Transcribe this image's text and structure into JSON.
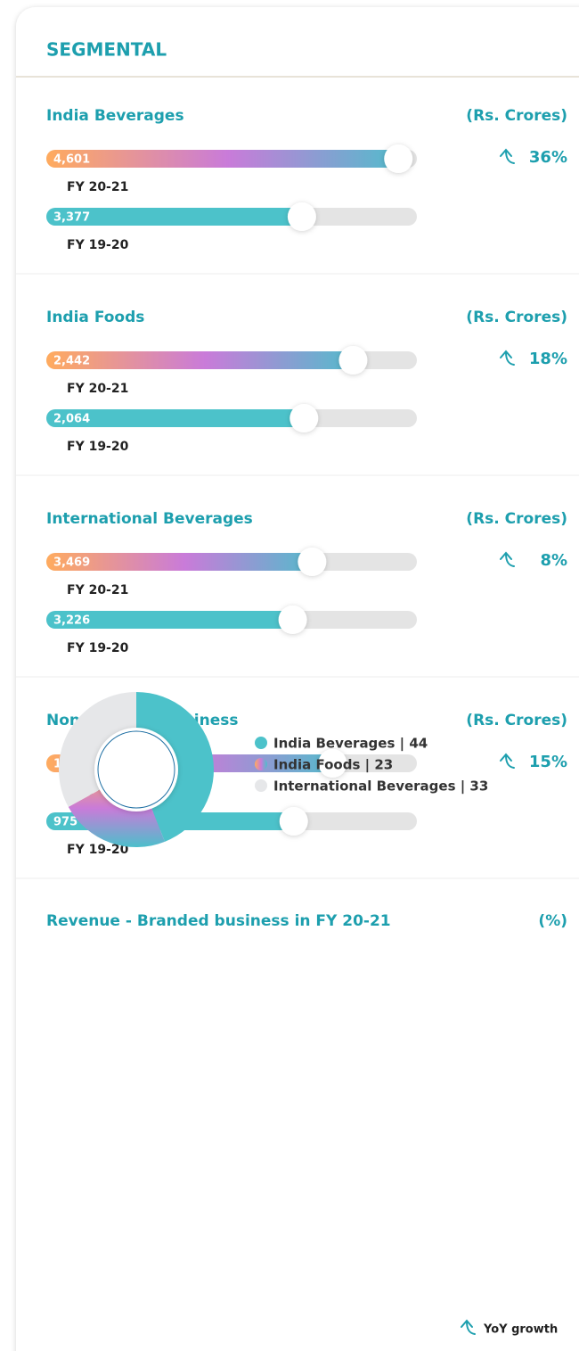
{
  "header": {
    "title": "SEGMENTAL"
  },
  "chart_data": [
    {
      "type": "bar",
      "title": "India Beverages",
      "unit": "(Rs. Crores)",
      "growth": "36%",
      "categories": [
        "FY 20-21",
        "FY 19-20"
      ],
      "values": [
        4601,
        3377
      ],
      "value_labels": [
        "4,601",
        "3,377"
      ],
      "xlim": [
        0,
        4700
      ],
      "colors": [
        "gradient",
        "#4cc2ca"
      ]
    },
    {
      "type": "bar",
      "title": "India Foods",
      "unit": "(Rs. Crores)",
      "growth": "18%",
      "categories": [
        "FY 20-21",
        "FY 19-20"
      ],
      "values": [
        2442,
        2064
      ],
      "value_labels": [
        "2,442",
        "2,064"
      ],
      "xlim": [
        0,
        2850
      ],
      "colors": [
        "gradient",
        "#4cc2ca"
      ]
    },
    {
      "type": "bar",
      "title": "International Beverages",
      "unit": "(Rs. Crores)",
      "growth": "8%",
      "categories": [
        "FY 20-21",
        "FY 19-20"
      ],
      "values": [
        3469,
        3226
      ],
      "value_labels": [
        "3,469",
        "3,226"
      ],
      "xlim": [
        0,
        4650
      ],
      "colors": [
        "gradient",
        "#4cc2ca"
      ]
    },
    {
      "type": "bar",
      "title": "Non Branded Business",
      "unit": "(Rs. Crores)",
      "growth": "15%",
      "categories": [
        "FY 20-21",
        "FY 19-20"
      ],
      "values": [
        1122,
        975
      ],
      "value_labels": [
        "1,122",
        "975"
      ],
      "xlim": [
        0,
        1400
      ],
      "colors": [
        "gradient",
        "#4cc2ca"
      ]
    },
    {
      "type": "pie",
      "title": "Revenue - Branded business in FY 20-21",
      "unit": "(%)",
      "categories": [
        "India Beverages",
        "India Foods",
        "International Beverages"
      ],
      "values": [
        44,
        23,
        33
      ],
      "legend_labels": [
        "India Beverages | 44",
        "India Foods | 23",
        "International Beverages | 33"
      ],
      "colors": [
        "#4cc2ca",
        "gradient",
        "#e6e7e9"
      ]
    }
  ],
  "gradient": [
    "#ffab5e",
    "#c97bd9",
    "#4cbfcb"
  ],
  "footer": {
    "legend": "YoY growth"
  }
}
